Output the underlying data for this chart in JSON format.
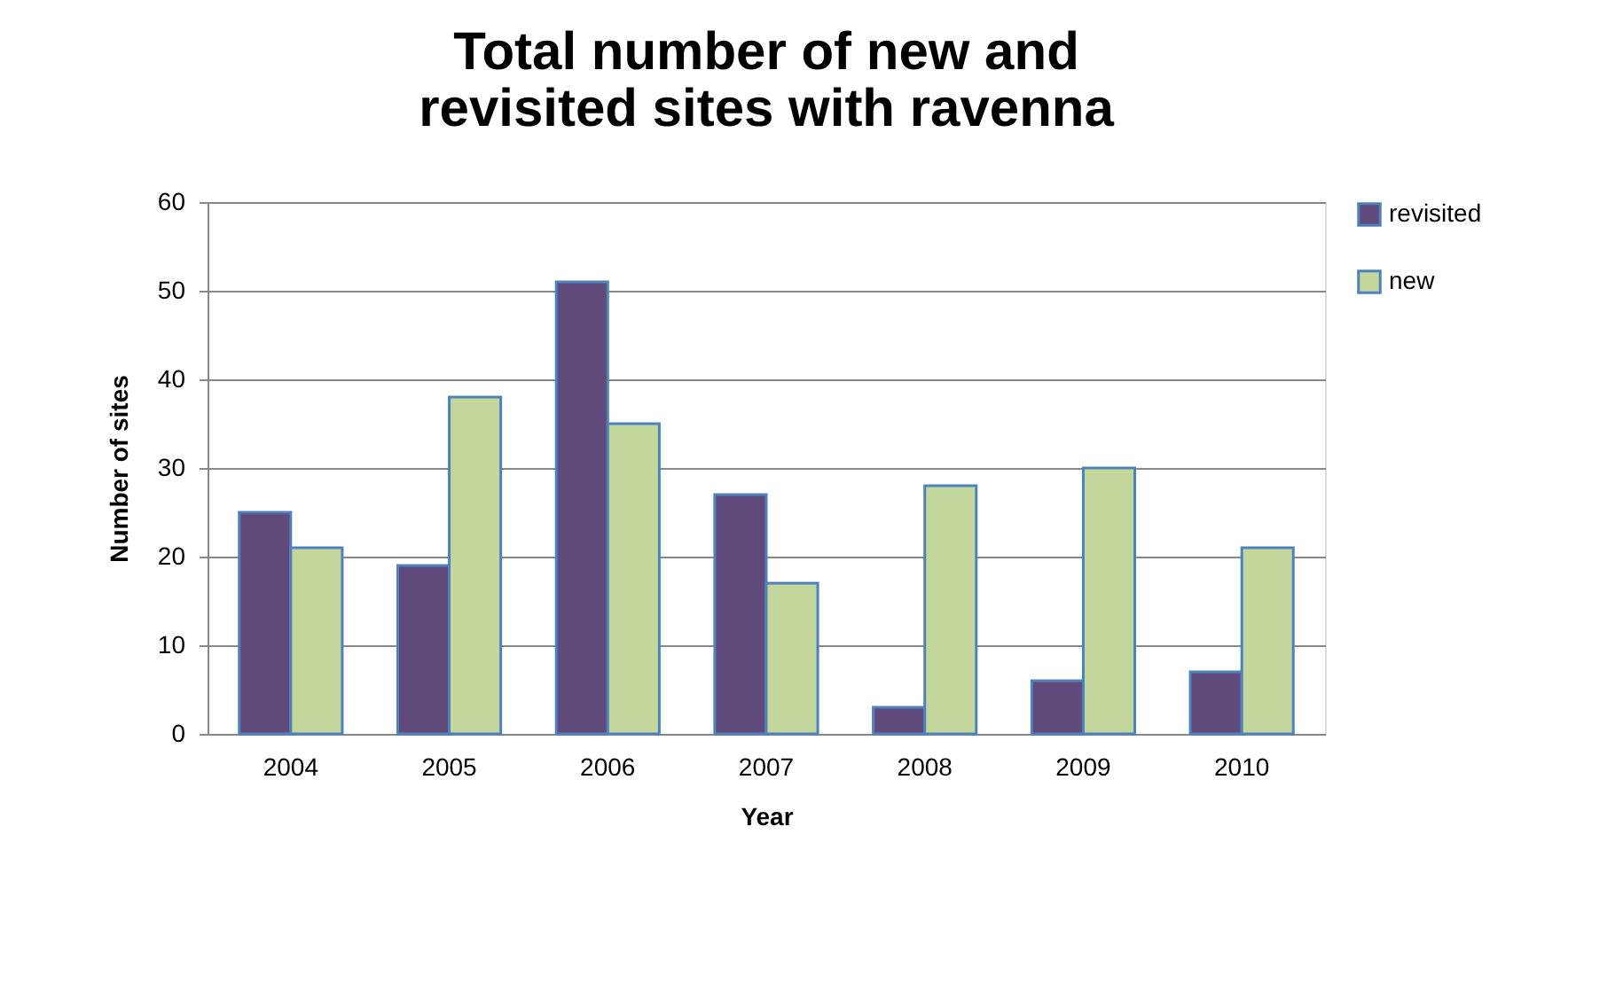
{
  "chart_data": {
    "type": "bar",
    "title": [
      "Total number of new and",
      "revisited sites with ravenna"
    ],
    "xlabel": "Year",
    "ylabel": "Number of sites",
    "categories": [
      "2004",
      "2005",
      "2006",
      "2007",
      "2008",
      "2009",
      "2010"
    ],
    "series": [
      {
        "name": "revisited",
        "color": "#604a7b",
        "values": [
          25,
          19,
          51,
          27,
          3,
          6,
          7
        ]
      },
      {
        "name": "new",
        "color": "#c3d69b",
        "values": [
          21,
          38,
          35,
          17,
          28,
          30,
          21
        ]
      }
    ],
    "ylim": [
      0,
      60
    ],
    "yticks": [
      0,
      10,
      20,
      30,
      40,
      50,
      60
    ],
    "grid": "y",
    "legend": "right"
  }
}
